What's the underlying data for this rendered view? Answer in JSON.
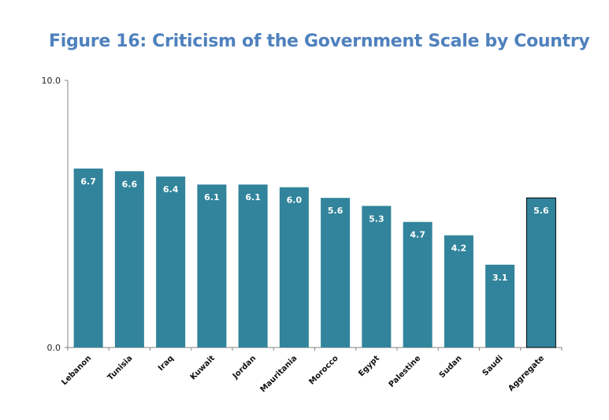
{
  "chart_data": {
    "type": "bar",
    "title": "Figure 16: Criticism of the Government Scale by Country",
    "xlabel": "",
    "ylabel": "",
    "ylim": [
      0,
      10
    ],
    "yticks": [
      "0.0",
      "10.0"
    ],
    "grid": false,
    "legend": "none",
    "categories": [
      "Lebanon",
      "Tunisia",
      "Iraq",
      "Kuwait",
      "Jordan",
      "Mauritania",
      "Morocco",
      "Egypt",
      "Palestine",
      "Sudan",
      "Saudi",
      "Aggregate"
    ],
    "values": [
      6.7,
      6.6,
      6.4,
      6.1,
      6.1,
      6.0,
      5.6,
      5.3,
      4.7,
      4.2,
      3.1,
      5.6
    ],
    "value_labels": [
      "6.7",
      "6.6",
      "6.4",
      "6.1",
      "6.1",
      "6.0",
      "5.6",
      "5.3",
      "4.7",
      "4.2",
      "3.1",
      "5.6"
    ],
    "highlighted_category": "Aggregate",
    "colors": {
      "bar": "#31849b",
      "title": "#4f81bd",
      "axis": "#868686",
      "highlight_border": "#000000"
    }
  }
}
